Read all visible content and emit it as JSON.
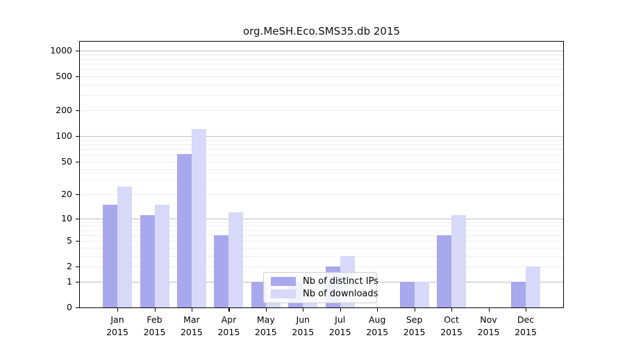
{
  "title": "org.MeSH.Eco.SMS35.db 2015",
  "legend": {
    "items": [
      {
        "label": "Nb of distinct IPs",
        "color": "#a8a8ec"
      },
      {
        "label": "Nb of downloads",
        "color": "#d8d8f8"
      }
    ],
    "position": "lower center"
  },
  "chart_data": {
    "type": "bar",
    "title": "org.MeSH.Eco.SMS35.db 2015",
    "categories": [
      "Jan 2015",
      "Feb 2015",
      "Mar 2015",
      "Apr 2015",
      "May 2015",
      "Jun 2015",
      "Jul 2015",
      "Aug 2015",
      "Sep 2015",
      "Oct 2015",
      "Nov 2015",
      "Dec 2015"
    ],
    "months": [
      "Jan",
      "Feb",
      "Mar",
      "Apr",
      "May",
      "Jun",
      "Jul",
      "Aug",
      "Sep",
      "Oct",
      "Nov",
      "Dec"
    ],
    "year": "2015",
    "series": [
      {
        "name": "Nb of distinct IPs",
        "color": "#a8a8ec",
        "values": [
          15,
          11,
          61,
          6,
          1,
          1,
          2,
          0,
          1,
          6,
          0,
          1
        ]
      },
      {
        "name": "Nb of downloads",
        "color": "#d8d8f8",
        "values": [
          25,
          15,
          120,
          12,
          1,
          1,
          3,
          0,
          1,
          11,
          0,
          2
        ]
      }
    ],
    "yscale": "log10(1+x)",
    "y_ticks": [
      0,
      1,
      2,
      5,
      10,
      20,
      50,
      100,
      200,
      500,
      1000
    ],
    "ylim": [
      0,
      1280
    ],
    "grid": "horizontal major+minor",
    "legend_position": "lower center"
  }
}
